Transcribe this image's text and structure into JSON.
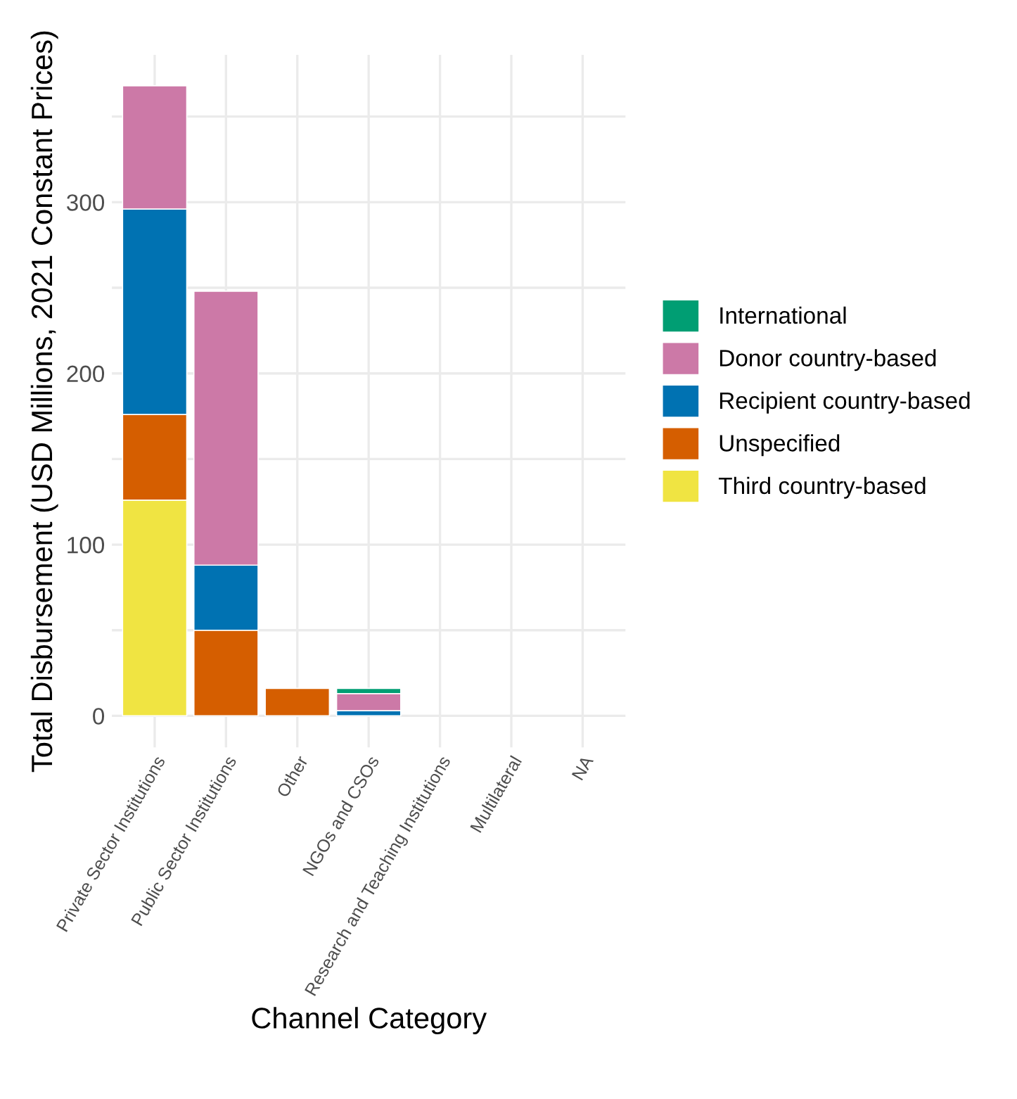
{
  "chart_data": {
    "type": "bar",
    "stacked": true,
    "xlabel": "Channel Category",
    "ylabel": "Total Disbursement (USD Millions, 2021 Constant Prices)",
    "categories": [
      "Private Sector Institutions",
      "Public Sector Institutions",
      "Other",
      "NGOs and CSOs",
      "Research and Teaching Institutions",
      "Multilateral",
      "NA"
    ],
    "series": [
      {
        "name": "Third country-based",
        "color": "#f0e442",
        "values": [
          126,
          null,
          null,
          null,
          null,
          null,
          null
        ]
      },
      {
        "name": "Unspecified",
        "color": "#d55e00",
        "values": [
          50,
          50,
          16,
          null,
          null,
          null,
          null
        ]
      },
      {
        "name": "Recipient country-based",
        "color": "#0072b2",
        "values": [
          120,
          38,
          null,
          3,
          null,
          null,
          null
        ]
      },
      {
        "name": "Donor country-based",
        "color": "#cc79a7",
        "values": [
          72,
          160,
          null,
          10,
          null,
          null,
          null
        ]
      },
      {
        "name": "International",
        "color": "#009e73",
        "values": [
          null,
          null,
          null,
          3,
          null,
          null,
          null
        ]
      }
    ],
    "ylim": [
      -18.4,
      386
    ],
    "yticks": [
      0,
      {
        "value": 50,
        "label": null
      },
      100,
      {
        "value": 150,
        "label": null
      },
      200,
      {
        "value": 250,
        "label": null
      },
      300,
      {
        "value": 350,
        "label": null
      }
    ],
    "grid": true,
    "legend": "right"
  }
}
